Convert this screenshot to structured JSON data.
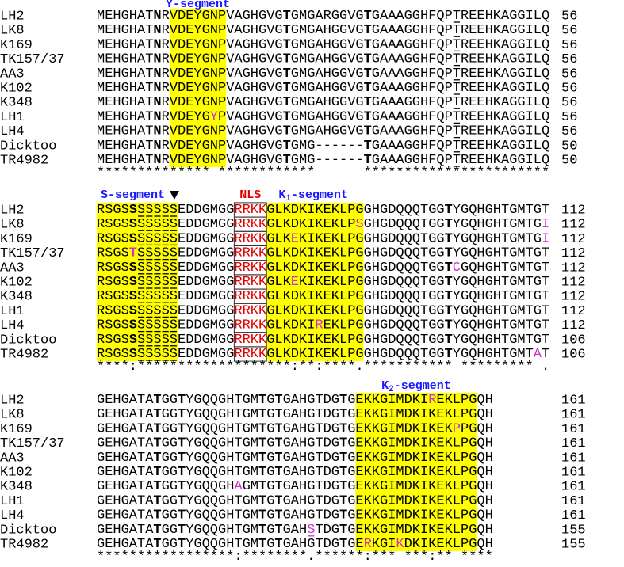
{
  "blocks": [
    {
      "labels": [
        {
          "text": "Y-segment",
          "color": "#1a1aff"
        }
      ],
      "rows": [
        {
          "name": "LH2",
          "sequence": "MEHGHATNRVDEYGNPVAGHGVGTGMGARGGVGTGAAAGGHFQPTREEHKAGGILQ",
          "end": 56
        },
        {
          "name": "LK8",
          "sequence": "MEHGHATNRVDEYGNPVAGHGVGTGMGAHGGVGTGAAAGGHFQPTREEHKAGGILQ",
          "end": 56
        },
        {
          "name": "K169",
          "sequence": "MEHGHATNRVDEYGNPVAGHGVGTGMGAHGGVGTGAAAGGHFQPTREEHKAGGILQ",
          "end": 56
        },
        {
          "name": "TK157/37",
          "sequence": "MEHGHATNRVDEYGNPVAGHGVGTGMGAHGGVGTGAAAGGHFQPTREEHKAGGILQ",
          "end": 56
        },
        {
          "name": "AA3",
          "sequence": "MEHGHATNRVDEYGNPVAGHGVGTGMGAHGGVGTGAAAGGHFQPTREEHKAGGILQ",
          "end": 56
        },
        {
          "name": "K102",
          "sequence": "MEHGHATNRVDEYGNPVAGHGVGTGMGAHGGVGTGAAAGGHFQPTREEHKAGGILQ",
          "end": 56
        },
        {
          "name": "K348",
          "sequence": "MEHGHATNRVDEYGNPVAGHGVGTGMGAHGGVGTGAAAGGHFQPTREEHKAGGILQ",
          "end": 56
        },
        {
          "name": "LH1",
          "sequence": "MEHGHATNRVDEYGYPVAGHGVGTGMGAHGGVGTGAAAGGHFQPTREEHKAGGILQ",
          "end": 56
        },
        {
          "name": "LH4",
          "sequence": "MEHGHATNRVDEYGNPVAGHGVGTGMGAHGGVGTGAAAGGHFQPTREEHKAGGILQ",
          "end": 56
        },
        {
          "name": "Dicktoo",
          "sequence": "MEHGHATNRVDEYGNPVAGHGVGTGMG------TGAAAGGHFQPTREEHKAGGILQ",
          "end": 50
        },
        {
          "name": "TR4982",
          "sequence": "MEHGHATNRVDEYGNPVAGHGVGTGMG------TGAAAGGHFQPTREEHKAGGILQ",
          "end": 50
        }
      ],
      "consensus": "************** ************      ***********************"
    },
    {
      "labels": [
        {
          "text": "S-segment",
          "color": "#1a1aff"
        },
        {
          "text": "NLS",
          "color": "#e00000"
        },
        {
          "text": "K",
          "subscript": "1",
          "suffix": "-segment",
          "color": "#1a1aff"
        }
      ],
      "rows": [
        {
          "name": "LH2",
          "sequence": "RSGSSSSSSSEDDGMGGRRKKGLKDKIKEKLPGGHGDQQQTGGTYGQHGHTGMTGT",
          "end": 112
        },
        {
          "name": "LK8",
          "sequence": "RSGSSSSSSSEDDGMGGRRKKGLKDKIKEKLPSGHGDQQQTGGTYGQHGHTGMTGI",
          "end": 112
        },
        {
          "name": "K169",
          "sequence": "RSGSSSSSSSEDDGMGGRRKKGLKEKIKEKLPGGHGDQQQTGGTYGQHGHTGMTGI",
          "end": 112
        },
        {
          "name": "TK157/37",
          "sequence": "RSGSTSSSSSEDDGMGGRRKKGLKDKIKEKLPGGHGDQQQTGGTYGQHGHTGMTGT",
          "end": 112
        },
        {
          "name": "AA3",
          "sequence": "RSGSSSSSSSEDDGMGGRRKKGLKDKIKEKLPGGHGDQQQTGGTCGQHGHTGMTGT",
          "end": 112
        },
        {
          "name": "K102",
          "sequence": "RSGSSSSSSSEDDGMGGRRKKGLKEKIKEKLPGGHGDQQQTGGTYGQHGHTGMTGT",
          "end": 112
        },
        {
          "name": "K348",
          "sequence": "RSGSSSSSSSEDDGMGGRRKKGLKDKIKEKLPGGHGDQQQTGGTYGQHGHTGMTGT",
          "end": 112
        },
        {
          "name": "LH1",
          "sequence": "RSGSSSSSSSEDDGMGGRRKKGLKDKIKEKLPGGHGDQQQTGGTYGQHGHTGMTGT",
          "end": 112
        },
        {
          "name": "LH4",
          "sequence": "RSGSSSSSSSEDDGMGGRRKKGLKDKIREKLPGGHGDQQQTGGTYGQHGHTGMTGT",
          "end": 112
        },
        {
          "name": "Dicktoo",
          "sequence": "RSGSSSSSSSEDDGMGGRRKKGLKDKIKEKLPGGHGDQQQTGGTYGQHGHTGMTGT",
          "end": 106
        },
        {
          "name": "TR4982",
          "sequence": "RSGSSSSSSSEDDGMGGRRKKGLKDKIKEKLPGGHGDQQQTGGTYGQHGHTGMTAT",
          "end": 106
        }
      ],
      "consensus": "****:*******************:**:****.*********** ********* ."
    },
    {
      "labels": [
        {
          "text": "K",
          "subscript": "2",
          "suffix": "-segment",
          "color": "#1a1aff"
        }
      ],
      "rows": [
        {
          "name": "LH2",
          "sequence": "GEHGATATGGTYGQQGHTGMTGTGAHGTDGTGEKKGIMDKIREKLPGQH",
          "end": 161
        },
        {
          "name": "LK8",
          "sequence": "GEHGATATGGTYGQQGHTGMTGTGAHGTDGTGEKKGIMDKIKEKLPGQH",
          "end": 161
        },
        {
          "name": "K169",
          "sequence": "GEHGATATGGTYGQQGHTGMTGTGAHGTDGTGEKKGIMDKIKEKPPGQH",
          "end": 161
        },
        {
          "name": "TK157/37",
          "sequence": "GEHGATATGGTYGQQGHTGMTGTGAHGTDGTGEKKGIMDKIKEKLPGQH",
          "end": 161
        },
        {
          "name": "AA3",
          "sequence": "GEHGATATGGTYGQQGHTGMTGTGAHGTDGTGEKKGIMDKIKEKLPGQH",
          "end": 161
        },
        {
          "name": "K102",
          "sequence": "GEHGATATGGTYGQQGHTGMTGTGAHGTDGTGEKKGIMDKIKEKLPGQH",
          "end": 161
        },
        {
          "name": "K348",
          "sequence": "GEHGATATGGTYGQQGHAGMTGTGAHGTDGTGEKKGIMDKIKEKLPGQH",
          "end": 161
        },
        {
          "name": "LH1",
          "sequence": "GEHGATATGGTYGQQGHTGMTGTGAHGTDGTGEKKGIMDKIKEKLPGQH",
          "end": 161
        },
        {
          "name": "LH4",
          "sequence": "GEHGATATGGTYGQQGHTGMTGTGAHGTDGTGEKKGIMDKIKEKLPGQH",
          "end": 161
        },
        {
          "name": "Dicktoo",
          "sequence": "GEHGATATGGTYGQQGHTGMTGTGAHSTDGTGEKKGIMDKIKEKLPGQH",
          "end": 155
        },
        {
          "name": "TR4982",
          "sequence": "GEHGATATGGTYGQQGHTGMTGTGAHGTDGTGERKGIKDKIKEKLPGQH",
          "end": 155
        }
      ],
      "consensus": "*****************:********.******:*** ***:** ****"
    }
  ]
}
